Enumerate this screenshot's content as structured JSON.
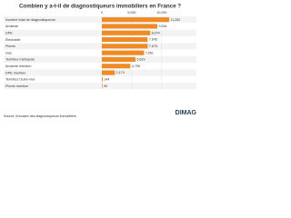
{
  "chart_data": {
    "type": "barh",
    "title": "Combien y a-t-il de diagnostiqueurs immobiliers en France ?",
    "categories": [
      "Nombre total de diagnostiqueurs",
      "Amiante",
      "DPE",
      "Électricité",
      "Plomb",
      "Gaz",
      "Termites métropole",
      "Amiante mention",
      "DPE mention",
      "Termites Outre-mer",
      "Plomb mention"
    ],
    "values": [
      11252,
      9264,
      8074,
      7645,
      7675,
      7051,
      5619,
      4759,
      2174,
      144,
      90
    ],
    "value_labels": [
      "11,252",
      "9,264",
      "8,074",
      "7,645",
      "7,675",
      "7,051",
      "5,619",
      "4,759",
      "2,174",
      "144",
      "90"
    ],
    "color": "#f08a24",
    "xlim": [
      0,
      12000
    ],
    "xticks": [
      0,
      {
        "value": 5000,
        "label": "5,000"
      },
      {
        "value": 10000,
        "label": "10,000"
      }
    ],
    "grid": true,
    "source": "Source: Annuaire des diagnostiqueurs immobiliers",
    "brand": "DIMAG"
  }
}
